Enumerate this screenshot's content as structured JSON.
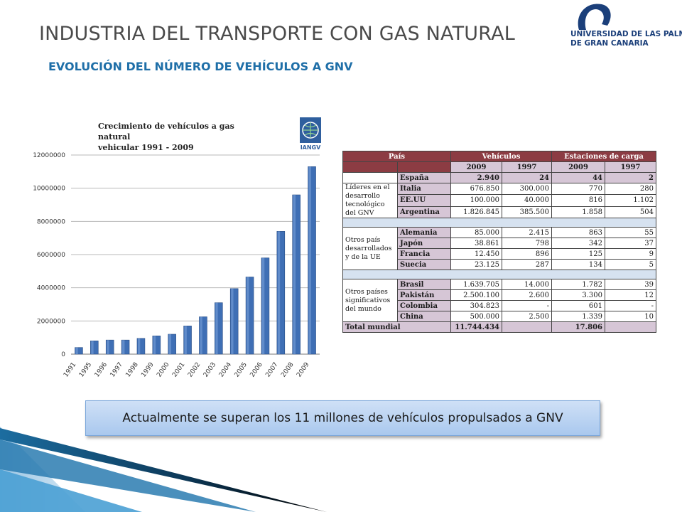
{
  "slide": {
    "title": "INDUSTRIA DEL TRANSPORTE CON GAS NATURAL",
    "subtitle": "EVOLUCIÓN DEL NÚMERO DE VEHÍCULOS A GNV",
    "callout": "Actualmente se superan los 11 millones de vehículos propulsados a GNV"
  },
  "logo": {
    "line1": "UNIVERSIDAD DE LAS PALMAS",
    "line2": "DE GRAN CANARIA",
    "color": "#1b3f7a"
  },
  "chart_title": {
    "line1": "Crecimiento de vehículos a gas natural",
    "line2": "vehicular 1991 - 2009",
    "source_logo": "IANGV"
  },
  "chart_data": {
    "type": "bar",
    "title": "Crecimiento de vehículos a gas natural vehicular 1991 - 2009",
    "categories": [
      "1991",
      "1995",
      "1996",
      "1997",
      "1998",
      "1999",
      "2000",
      "2001",
      "2002",
      "2003",
      "2004",
      "2005",
      "2006",
      "2007",
      "2008",
      "2009"
    ],
    "values": [
      400000,
      800000,
      850000,
      850000,
      950000,
      1100000,
      1200000,
      1700000,
      2250000,
      3100000,
      3950000,
      4650000,
      5800000,
      7400000,
      9600000,
      11300000
    ],
    "yticks": [
      "0",
      "2000000",
      "4000000",
      "6000000",
      "8000000",
      "10000000",
      "12000000"
    ],
    "ylim": [
      0,
      12000000
    ],
    "grid": true,
    "bar_color": "#3f6fb5"
  },
  "table": {
    "headers": {
      "pais": "País",
      "vehiculos": "Vehículos",
      "estaciones": "Estaciones de carga"
    },
    "years": [
      "2009",
      "1997",
      "2009",
      "1997"
    ],
    "top_row": {
      "country": "España",
      "values": [
        "2.940",
        "24",
        "44",
        "2"
      ]
    },
    "groups": [
      {
        "label": "Líderes en el desarrollo tecnológico del GNV",
        "rows": [
          {
            "country": "Italia",
            "values": [
              "676.850",
              "300.000",
              "770",
              "280"
            ]
          },
          {
            "country": "EE.UU",
            "values": [
              "100.000",
              "40.000",
              "816",
              "1.102"
            ]
          },
          {
            "country": "Argentina",
            "values": [
              "1.826.845",
              "385.500",
              "1.858",
              "504"
            ]
          }
        ]
      },
      {
        "label": "Otros país desarrollados y de la UE",
        "rows": [
          {
            "country": "Alemania",
            "values": [
              "85.000",
              "2.415",
              "863",
              "55"
            ]
          },
          {
            "country": "Japón",
            "values": [
              "38.861",
              "798",
              "342",
              "37"
            ]
          },
          {
            "country": "Francia",
            "values": [
              "12.450",
              "896",
              "125",
              "9"
            ]
          },
          {
            "country": "Suecia",
            "values": [
              "23.125",
              "287",
              "134",
              "5"
            ]
          }
        ]
      },
      {
        "label": "Otros países significativos del mundo",
        "rows": [
          {
            "country": "Brasil",
            "values": [
              "1.639.705",
              "14.000",
              "1.782",
              "39"
            ]
          },
          {
            "country": "Pakistán",
            "values": [
              "2.500.100",
              "2.600",
              "3.300",
              "12"
            ]
          },
          {
            "country": "Colombia",
            "values": [
              "304.823",
              "-",
              "601",
              "-"
            ]
          },
          {
            "country": "China",
            "values": [
              "500.000",
              "2.500",
              "1.339",
              "10"
            ]
          }
        ]
      }
    ],
    "total": {
      "label": "Total mundial",
      "vehicles_2009": "11.744.434",
      "stations_2009": "17.806"
    }
  }
}
